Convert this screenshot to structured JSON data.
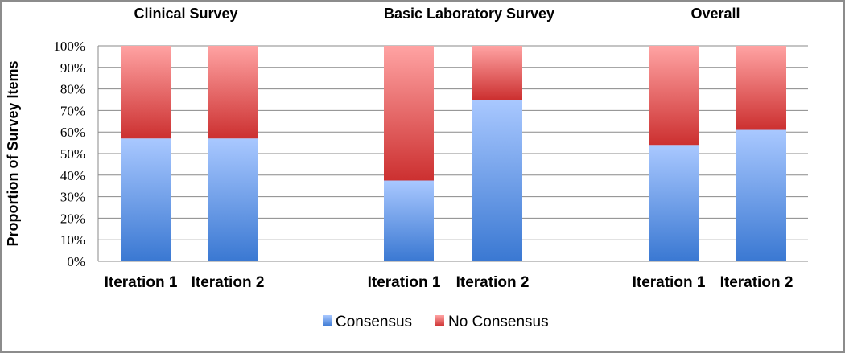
{
  "chart_data": {
    "type": "bar",
    "stacked": true,
    "ylabel": "Proportion of Survey Items",
    "ylim": [
      0,
      100
    ],
    "yticks": [
      "0%",
      "10%",
      "20%",
      "30%",
      "40%",
      "50%",
      "60%",
      "70%",
      "80%",
      "90%",
      "100%"
    ],
    "grid": true,
    "legend_position": "bottom",
    "colors": {
      "Consensus": "#5b8fe0",
      "No Consensus": "#e05a5a"
    },
    "panels": [
      {
        "title": "Clinical Survey",
        "categories": [
          "Iteration 1",
          "Iteration 2"
        ],
        "series": [
          {
            "name": "Consensus",
            "values": [
              57,
              57
            ]
          },
          {
            "name": "No Consensus",
            "values": [
              43,
              43
            ]
          }
        ]
      },
      {
        "title": "Basic Laboratory Survey",
        "categories": [
          "Iteration 1",
          "Iteration 2"
        ],
        "series": [
          {
            "name": "Consensus",
            "values": [
              37.5,
              75
            ]
          },
          {
            "name": "No Consensus",
            "values": [
              62.5,
              25
            ]
          }
        ]
      },
      {
        "title": "Overall",
        "categories": [
          "Iteration 1",
          "Iteration 2"
        ],
        "series": [
          {
            "name": "Consensus",
            "values": [
              54,
              61
            ]
          },
          {
            "name": "No Consensus",
            "values": [
              46,
              39
            ]
          }
        ]
      }
    ],
    "legend": [
      "Consensus",
      "No Consensus"
    ]
  }
}
